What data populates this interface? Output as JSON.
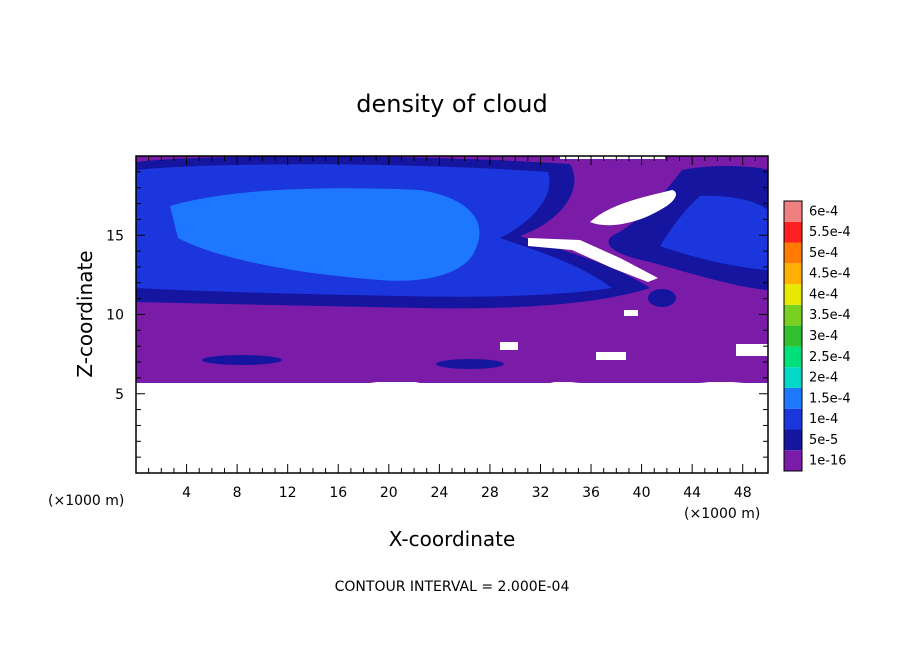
{
  "chart_data": {
    "type": "heatmap",
    "title": "density of cloud",
    "xlabel": "X-coordinate",
    "ylabel": "Z-coordinate",
    "x_unit": "(×1000 m)",
    "y_unit": "(×1000 m)",
    "x_ticks": [
      4,
      8,
      12,
      16,
      20,
      24,
      28,
      32,
      36,
      40,
      44,
      48
    ],
    "y_ticks": [
      5,
      10,
      15
    ],
    "xlim": [
      0,
      50
    ],
    "ylim": [
      0,
      20
    ],
    "legend": {
      "position": "right",
      "labels": [
        "1e-16",
        "5e-5",
        "1e-4",
        "1.5e-4",
        "2e-4",
        "2.5e-4",
        "3e-4",
        "3.5e-4",
        "4e-4",
        "4.5e-4",
        "5e-4",
        "5.5e-4",
        "6e-4"
      ],
      "colors": [
        "#7a1ca8",
        "#1515a0",
        "#1a36dc",
        "#1e78ff",
        "#00d8c8",
        "#00e07a",
        "#30c030",
        "#7ad020",
        "#e8e800",
        "#ffb000",
        "#ff7a00",
        "#ff2020",
        "#f08080"
      ]
    },
    "field_summary": {
      "cloud_base_km": 6,
      "cloud_top_km": 20,
      "blue_region_x": [
        0,
        40
      ],
      "blue_region_z": [
        10,
        19.5
      ]
    },
    "note": "CONTOUR INTERVAL = 2.000E-04"
  },
  "colors": {
    "purple": "#7a1ca8",
    "dark_blue": "#1515a0",
    "blue": "#1a36dc",
    "light_blue": "#1e78ff"
  }
}
